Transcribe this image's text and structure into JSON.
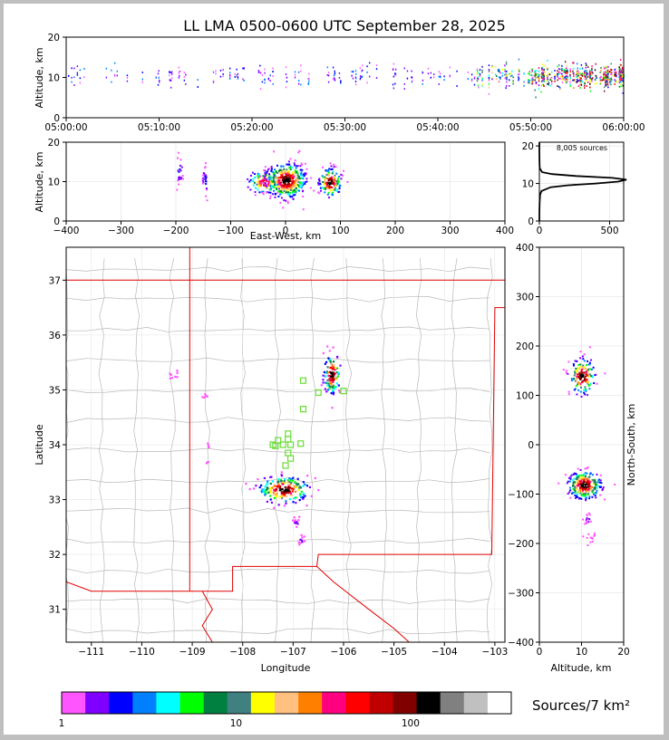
{
  "title": "LL LMA 0500-0600 UTC September 28, 2025",
  "chart_data": [
    {
      "panel": "altitude-time",
      "type": "scatter",
      "ylabel": "Altitude, km",
      "ylim": [
        0,
        20
      ],
      "yticks": [
        "0",
        "10",
        "20"
      ],
      "xticks": [
        "05:00:00",
        "05:10:00",
        "05:20:00",
        "05:30:00",
        "05:40:00",
        "05:50:00",
        "06:00:00"
      ],
      "xlim_minutes": [
        0,
        60
      ],
      "density_bands": [
        {
          "t_start": 0,
          "t_end": 44,
          "level": "sparse"
        },
        {
          "t_start": 44,
          "t_end": 50,
          "level": "moderate"
        },
        {
          "t_start": 50,
          "t_end": 60,
          "level": "dense"
        }
      ],
      "alt_center_km": 10.5
    },
    {
      "panel": "altitude-eastwest",
      "type": "scatter",
      "xlabel": "East-West, km",
      "ylabel": "Altitude, km",
      "xlim": [
        -400,
        400
      ],
      "ylim": [
        0,
        20
      ],
      "xticks": [
        "−400",
        "−300",
        "−200",
        "−100",
        "0",
        "100",
        "200",
        "300",
        "400"
      ],
      "yticks": [
        "0",
        "10",
        "20"
      ],
      "clusters": [
        {
          "x": -195,
          "alt": 13,
          "spread_x": 4,
          "spread_z": 2,
          "n": 20
        },
        {
          "x": -148,
          "alt": 10.5,
          "spread_x": 3,
          "spread_z": 2,
          "n": 25
        },
        {
          "x": -40,
          "alt": 10,
          "spread_x": 15,
          "spread_z": 1.5,
          "n": 120
        },
        {
          "x": 0,
          "alt": 10.5,
          "spread_x": 18,
          "spread_z": 2.2,
          "n": 400
        },
        {
          "x": 80,
          "alt": 10,
          "spread_x": 10,
          "spread_z": 1.8,
          "n": 150
        }
      ]
    },
    {
      "panel": "source-histogram",
      "type": "line",
      "annotation": "8,005 sources",
      "xlim": [
        0,
        600
      ],
      "ylim": [
        0,
        21
      ],
      "xticks": [
        "0",
        "500"
      ],
      "yticks": [
        "0",
        "10",
        "20"
      ],
      "alt": [
        0,
        1,
        2,
        5,
        7,
        8,
        9,
        9.5,
        10,
        10.5,
        11,
        11.5,
        12,
        12.5,
        13,
        14,
        15,
        18,
        21
      ],
      "count": [
        0,
        0,
        0,
        2,
        5,
        15,
        80,
        200,
        400,
        560,
        620,
        520,
        260,
        90,
        20,
        3,
        1,
        0,
        0
      ]
    },
    {
      "panel": "plan-view",
      "type": "scatter",
      "xlabel": "Longitude",
      "ylabel": "Latitude",
      "xlim": [
        -111.5,
        -102.8
      ],
      "ylim": [
        30.4,
        37.6
      ],
      "xticks": [
        "−111",
        "−110",
        "−109",
        "−108",
        "−107",
        "−106",
        "−105",
        "−104",
        "−103"
      ],
      "yticks": [
        "31",
        "32",
        "33",
        "34",
        "35",
        "36",
        "37"
      ],
      "station_markers": [
        [
          -106.8,
          35.17
        ],
        [
          -106.5,
          34.95
        ],
        [
          -106.0,
          34.98
        ],
        [
          -106.8,
          34.65
        ],
        [
          -107.1,
          34.2
        ],
        [
          -107.3,
          34.08
        ],
        [
          -107.4,
          34.0
        ],
        [
          -107.2,
          34.0
        ],
        [
          -107.05,
          34.0
        ],
        [
          -107.1,
          33.85
        ],
        [
          -107.05,
          33.75
        ],
        [
          -107.15,
          33.62
        ],
        [
          -106.85,
          34.02
        ],
        [
          -107.1,
          34.1
        ],
        [
          -107.35,
          33.98
        ]
      ],
      "clusters": [
        {
          "lon": -106.25,
          "lat": 35.3,
          "slon": 0.08,
          "slat": 0.18,
          "n": 120
        },
        {
          "lon": -107.2,
          "lat": 33.2,
          "slon": 0.25,
          "slat": 0.12,
          "n": 200
        },
        {
          "lon": -106.95,
          "lat": 32.6,
          "slon": 0.04,
          "slat": 0.05,
          "n": 12
        },
        {
          "lon": -106.85,
          "lat": 32.27,
          "slon": 0.04,
          "slat": 0.04,
          "n": 10
        },
        {
          "lon": -109.4,
          "lat": 35.28,
          "slon": 0.05,
          "slat": 0.05,
          "n": 8
        },
        {
          "lon": -108.75,
          "lat": 34.9,
          "slon": 0.03,
          "slat": 0.03,
          "n": 6
        },
        {
          "lon": -108.7,
          "lat": 34.0,
          "slon": 0.02,
          "slat": 0.02,
          "n": 3
        },
        {
          "lon": -108.72,
          "lat": 33.68,
          "slon": 0.02,
          "slat": 0.02,
          "n": 3
        }
      ]
    },
    {
      "panel": "altitude-northsouth",
      "type": "scatter",
      "xlabel": "Altitude, km",
      "ylabel": "North-South, km",
      "xlim": [
        0,
        20
      ],
      "ylim": [
        -400,
        400
      ],
      "xticks": [
        "0",
        "10",
        "20"
      ],
      "yticks": [
        "−400",
        "−300",
        "−200",
        "−100",
        "0",
        "100",
        "200",
        "300",
        "400"
      ],
      "clusters": [
        {
          "alt": 10,
          "ns": 140,
          "salt": 1.5,
          "sns": 18,
          "n": 160
        },
        {
          "alt": 10.5,
          "ns": -80,
          "salt": 2,
          "sns": 14,
          "n": 260
        },
        {
          "alt": 11.5,
          "ns": -150,
          "salt": 0.7,
          "sns": 6,
          "n": 15
        },
        {
          "alt": 12,
          "ns": -190,
          "salt": 0.6,
          "sns": 5,
          "n": 12
        }
      ]
    }
  ],
  "colorbar": {
    "label": "Sources/7 km²",
    "tick_labels": [
      "1",
      "10",
      "100"
    ],
    "colors": [
      "#ff55ff",
      "#8000ff",
      "#0000ff",
      "#0080ff",
      "#00ffff",
      "#00ff00",
      "#008040",
      "#408080",
      "#ffff00",
      "#ffc080",
      "#ff8000",
      "#ff0080",
      "#ff0000",
      "#c00000",
      "#800000",
      "#000000",
      "#808080",
      "#c0c0c0",
      "#ffffff"
    ]
  }
}
